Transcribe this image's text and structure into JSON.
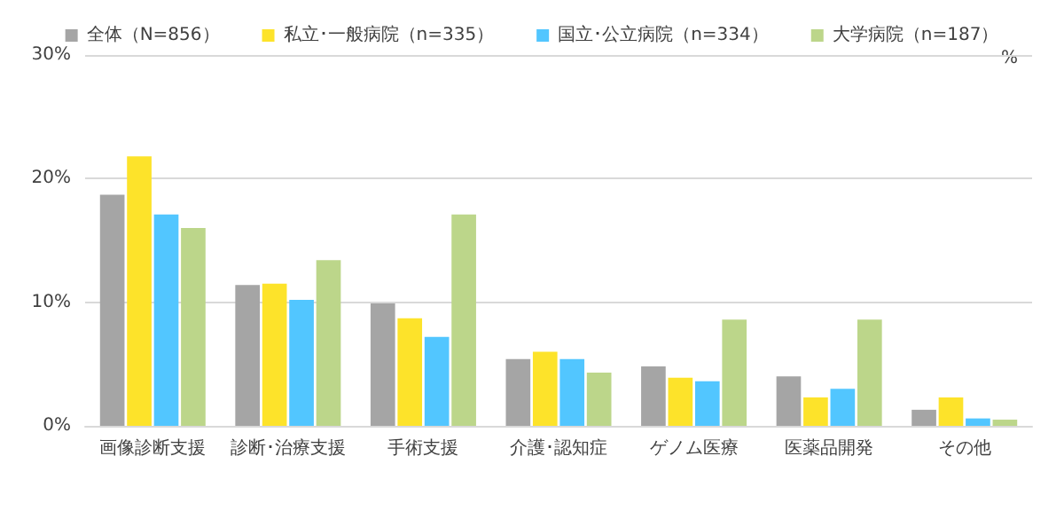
{
  "chart_data": {
    "type": "bar",
    "categories": [
      "画像診断支援",
      "診断･治療支援",
      "手術支援",
      "介護･認知症",
      "ゲノム医療",
      "医薬品開発",
      "その他"
    ],
    "series": [
      {
        "name": "全体（N=856）",
        "color": "#a5a5a5",
        "values": [
          18.7,
          11.4,
          9.9,
          5.4,
          4.8,
          4.0,
          1.3
        ]
      },
      {
        "name": "私立･一般病院（n=335）",
        "color": "#fde32a",
        "values": [
          21.8,
          11.5,
          8.7,
          6.0,
          3.9,
          2.3,
          2.3
        ]
      },
      {
        "name": "国立･公立病院（n=334）",
        "color": "#52c6ff",
        "values": [
          17.1,
          10.2,
          7.2,
          5.4,
          3.6,
          3.0,
          0.6
        ]
      },
      {
        "name": "大学病院（n=187）",
        "color": "#bcd68a",
        "values": [
          16.0,
          13.4,
          17.1,
          4.3,
          8.6,
          8.6,
          0.5
        ]
      }
    ],
    "ylim": [
      0,
      30
    ],
    "yticks": [
      {
        "value": 0,
        "label": "0%"
      },
      {
        "value": 10,
        "label": "10%"
      },
      {
        "value": 20,
        "label": "20%"
      },
      {
        "value": 30,
        "label": "30%"
      }
    ],
    "grid": "y",
    "legend": "top",
    "annotations": [
      "%"
    ]
  }
}
